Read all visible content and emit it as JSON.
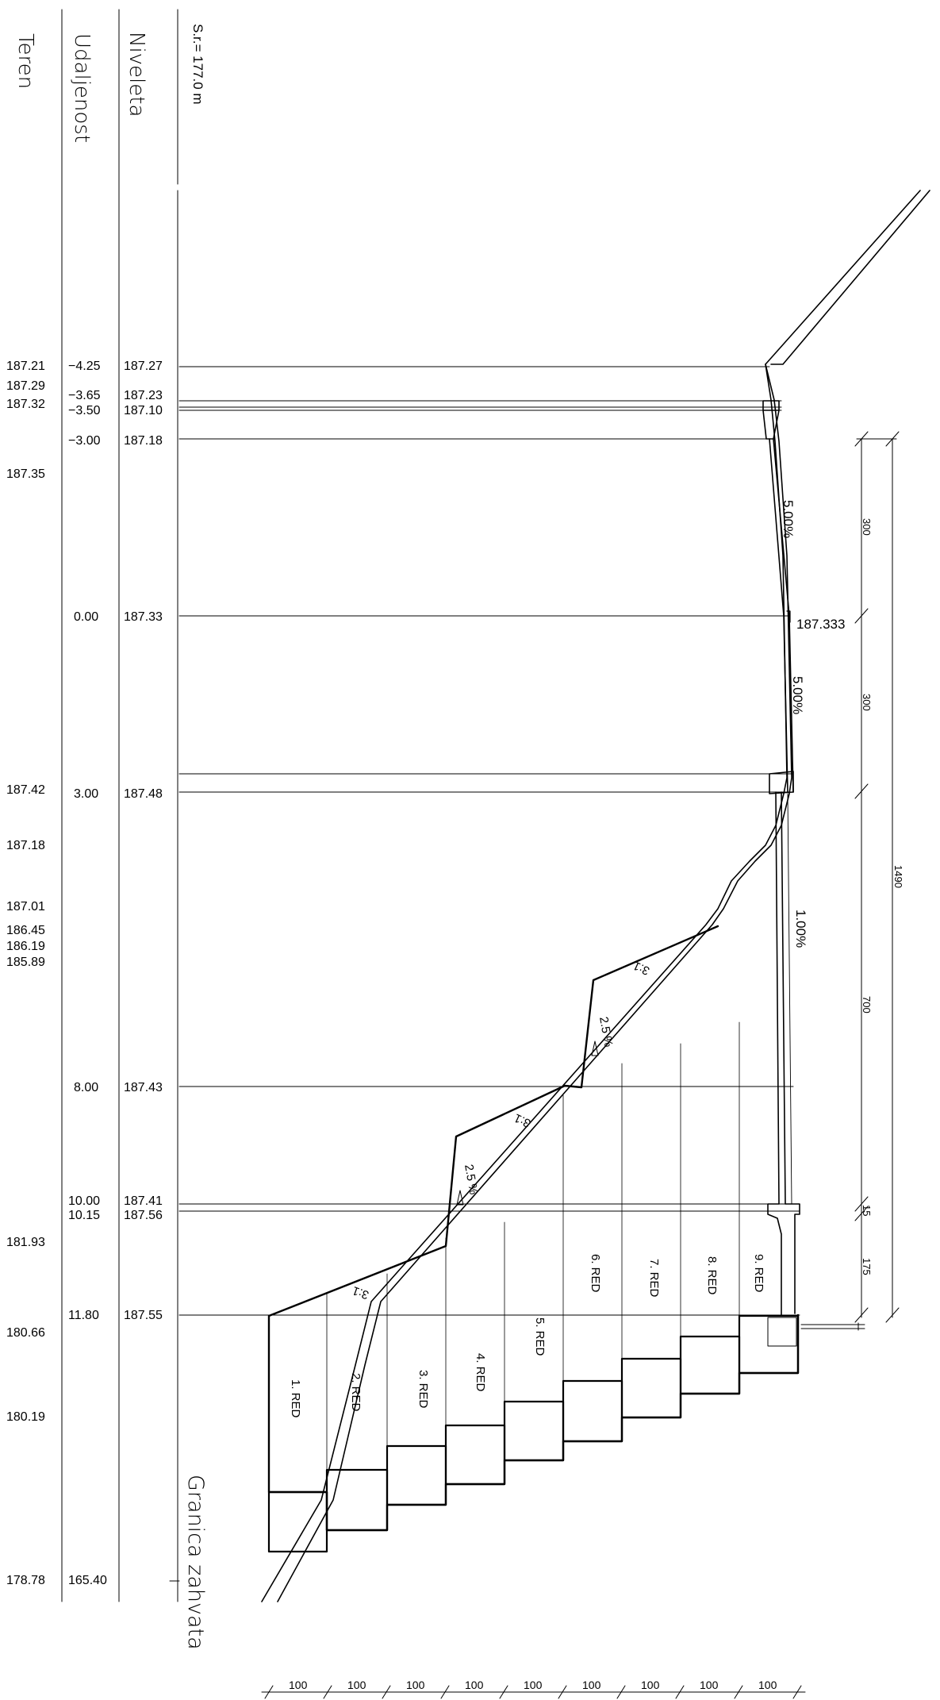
{
  "header": {
    "teren_label": "Teren",
    "udaljenost_label": "Udaljenost",
    "niveleta_label": "Niveleta",
    "scale_label": "S.r.= 177.0 m"
  },
  "table_rows": [
    {
      "teren": "187.21",
      "udaljenost": "−4.25",
      "niveleta": "187.27"
    },
    {
      "teren": "187.29",
      "udaljenost": "−3.65",
      "niveleta": "187.23"
    },
    {
      "teren": "187.32",
      "udaljenost": "−3.50",
      "niveleta": "187.10"
    },
    {
      "teren": "",
      "udaljenost": "−3.00",
      "niveleta": "187.18"
    },
    {
      "teren": "187.35",
      "udaljenost": "",
      "niveleta": ""
    },
    {
      "teren": "",
      "udaljenost": "0.00",
      "niveleta": "187.33"
    },
    {
      "teren": "187.42",
      "udaljenost": "3.00",
      "niveleta": "187.48"
    },
    {
      "teren": "187.18",
      "udaljenost": "",
      "niveleta": ""
    },
    {
      "teren": "187.01",
      "udaljenost": "",
      "niveleta": ""
    },
    {
      "teren": "186.45",
      "udaljenost": "",
      "niveleta": ""
    },
    {
      "teren": "186.19",
      "udaljenost": "",
      "niveleta": ""
    },
    {
      "teren": "185.89",
      "udaljenost": "",
      "niveleta": ""
    },
    {
      "teren": "",
      "udaljenost": "8.00",
      "niveleta": "187.43"
    },
    {
      "teren": "",
      "udaljenost": "10.00",
      "niveleta": "187.41"
    },
    {
      "teren": "",
      "udaljenost": "10.15",
      "niveleta": "187.56"
    },
    {
      "teren": "181.93",
      "udaljenost": "",
      "niveleta": ""
    },
    {
      "teren": "",
      "udaljenost": "11.80",
      "niveleta": "187.55"
    },
    {
      "teren": "180.66",
      "udaljenost": "",
      "niveleta": ""
    },
    {
      "teren": "180.19",
      "udaljenost": "",
      "niveleta": ""
    },
    {
      "teren": "178.78",
      "udaljenost": "165.40",
      "niveleta": ""
    }
  ],
  "annotations": {
    "axis_elevation": "187.333",
    "slope_top": "5.00%",
    "slope_mid": "5.00%",
    "slope_low": "1.00%",
    "wall_slope_upper": "3:1",
    "wall_slope_mid": "3:1",
    "wall_slope_lower": "3:1",
    "bench_slope_upper": "2.5 %",
    "bench_slope_lower": "2.5 %"
  },
  "rows_labels": [
    "1. RED",
    "2. RED",
    "3. RED",
    "4. RED",
    "5. RED",
    "6. RED",
    "7. RED",
    "8. RED",
    "9. RED"
  ],
  "dimensions": {
    "d300a": "300",
    "d300b": "300",
    "d700": "700",
    "d15": "15",
    "d175": "175",
    "d1490": "1490",
    "bottom": [
      "100",
      "100",
      "100",
      "100",
      "100",
      "100",
      "100",
      "100",
      "100"
    ]
  },
  "boundary_label": "Granica zahvata"
}
